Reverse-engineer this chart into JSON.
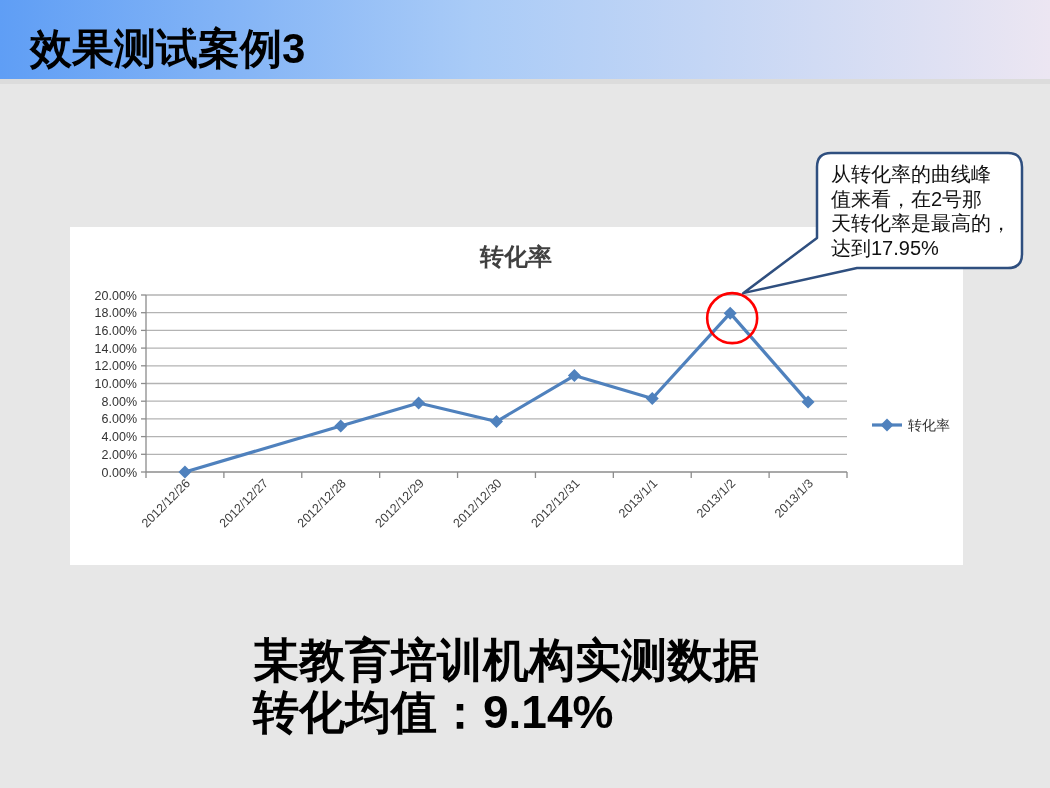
{
  "chart_data": {
    "type": "line",
    "title": "效果测试案例3",
    "subtitle": "转化率",
    "categories": [
      "2012/12/26",
      "2012/12/27",
      "2012/12/28",
      "2012/12/29",
      "2012/12/30",
      "2012/12/31",
      "2013/1/1",
      "2013/1/2",
      "2013/1/3"
    ],
    "series": [
      {
        "name": "转化率",
        "color": "#4f81bd",
        "values": [
          0,
          null,
          5.2,
          7.8,
          5.7,
          10.9,
          8.3,
          17.95,
          7.9
        ]
      }
    ],
    "ylim": [
      0,
      20
    ],
    "yticks": [
      {
        "value": 0,
        "label": "0.00%"
      },
      {
        "value": 2,
        "label": "2.00%"
      },
      {
        "value": 4,
        "label": "4.00%"
      },
      {
        "value": 6,
        "label": "6.00%"
      },
      {
        "value": 8,
        "label": "8.00%"
      },
      {
        "value": 10,
        "label": "10.00%"
      },
      {
        "value": 12,
        "label": "12.00%"
      },
      {
        "value": 14,
        "label": "14.00%"
      },
      {
        "value": 16,
        "label": "16.00%"
      },
      {
        "value": 18,
        "label": "18.00%"
      },
      {
        "value": 20,
        "label": "20.00%"
      }
    ],
    "grid": "y",
    "legend": "right",
    "marker": "diamond",
    "line_style": "solid",
    "annotations": [
      "从转化率的曲线峰值来看，在2号那天转化率是最高的，达到17.95%",
      "某教育培训机构实测数据",
      "转化均值：9.14%"
    ]
  }
}
